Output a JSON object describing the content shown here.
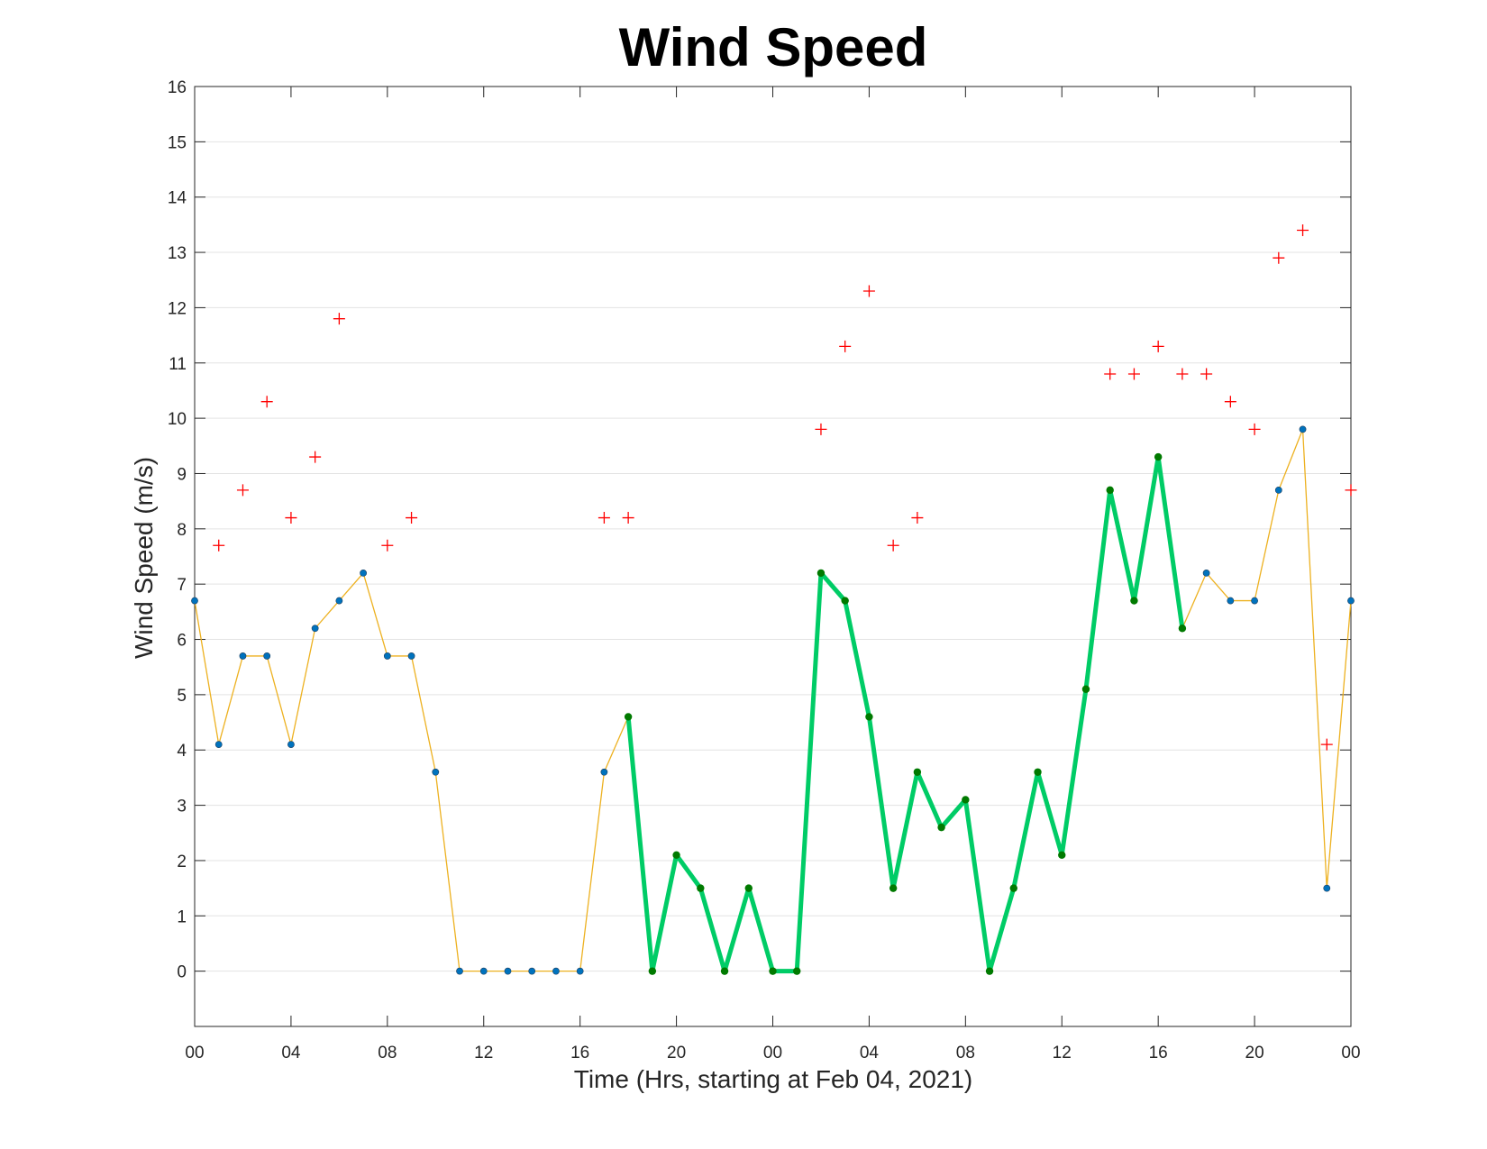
{
  "chart_data": {
    "type": "line",
    "title": "Wind Speed",
    "xlabel": "Time (Hrs, starting at Feb 04, 2021)",
    "ylabel": "Wind Speed (m/s)",
    "ylim": [
      -1,
      16
    ],
    "xlim": [
      0,
      48
    ],
    "yticks": [
      0,
      1,
      2,
      3,
      4,
      5,
      6,
      7,
      8,
      9,
      10,
      11,
      12,
      13,
      14,
      15,
      16
    ],
    "xtick_hours": [
      0,
      4,
      8,
      12,
      16,
      20,
      24,
      28,
      32,
      36,
      40,
      44,
      48
    ],
    "xtick_labels": [
      "00",
      "04",
      "08",
      "12",
      "16",
      "20",
      "00",
      "04",
      "08",
      "12",
      "16",
      "20",
      "00"
    ],
    "grid": "horizontal",
    "colors": {
      "speed_line": "#EDB120",
      "speed_marker": "#0072BD",
      "highlight_line": "#00CC66",
      "highlight_marker": "#007A00",
      "gust_marker": "#FF0000"
    },
    "series": [
      {
        "style": "thin-line-with-dots",
        "x": [
          0,
          1,
          2,
          3,
          4,
          5,
          6,
          7,
          8,
          9,
          10,
          11,
          12,
          13,
          14,
          15,
          16,
          17,
          18,
          19,
          20,
          21,
          22,
          23,
          24,
          25,
          26,
          27,
          28,
          29,
          30,
          31,
          32,
          33,
          34,
          35,
          36,
          37,
          38,
          39,
          40,
          41,
          42,
          43,
          44,
          45,
          46,
          47,
          48
        ],
        "values": [
          6.7,
          4.1,
          5.7,
          5.7,
          4.1,
          6.2,
          6.7,
          7.2,
          5.7,
          5.7,
          3.6,
          0,
          0,
          0,
          0,
          0,
          0,
          3.6,
          4.6,
          0,
          2.1,
          1.5,
          0,
          1.5,
          0,
          0,
          7.2,
          6.7,
          4.6,
          1.5,
          3.6,
          2.6,
          3.1,
          0,
          1.5,
          3.6,
          2.1,
          5.1,
          8.7,
          6.7,
          9.3,
          6.2,
          7.2,
          6.7,
          6.7,
          8.7,
          9.8,
          1.5,
          6.7
        ]
      },
      {
        "style": "thick-highlight",
        "x": [
          18,
          19,
          20,
          21,
          22,
          23,
          24,
          25,
          26,
          27,
          28,
          29,
          30,
          31,
          32,
          33,
          34,
          35,
          36,
          37,
          38,
          39,
          40,
          41
        ],
        "values": [
          4.6,
          0,
          2.1,
          1.5,
          0,
          1.5,
          0,
          0,
          7.2,
          6.7,
          4.6,
          1.5,
          3.6,
          2.6,
          3.1,
          0,
          1.5,
          3.6,
          2.1,
          5.1,
          8.7,
          6.7,
          9.3,
          6.2
        ]
      },
      {
        "style": "plus-markers",
        "x": [
          1,
          2,
          3,
          4,
          5,
          6,
          8,
          9,
          17,
          18,
          26,
          27,
          28,
          29,
          30,
          38,
          39,
          40,
          41,
          42,
          43,
          44,
          45,
          46,
          47,
          48
        ],
        "values": [
          7.7,
          8.7,
          10.3,
          8.2,
          9.3,
          11.8,
          7.7,
          8.2,
          8.2,
          8.2,
          9.8,
          11.3,
          12.3,
          7.7,
          8.2,
          10.8,
          10.8,
          11.3,
          10.8,
          10.8,
          10.3,
          9.8,
          12.9,
          13.4,
          4.1,
          8.7
        ]
      }
    ]
  }
}
